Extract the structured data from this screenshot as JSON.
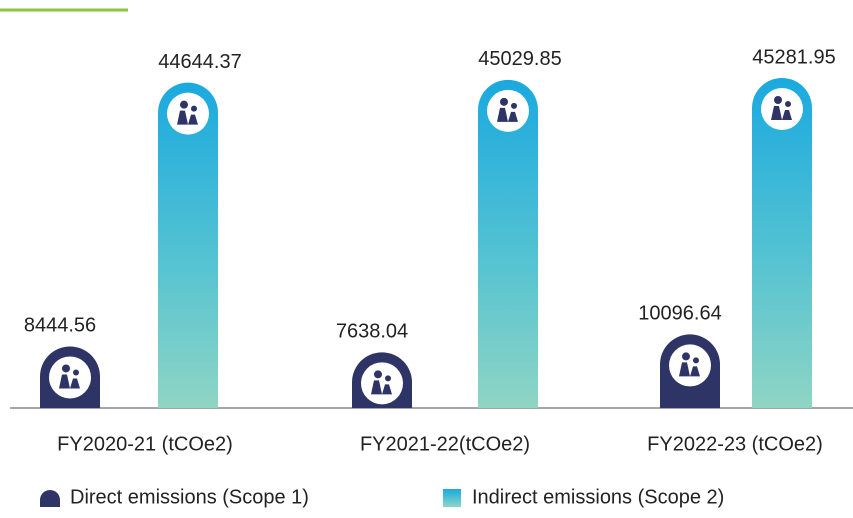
{
  "chart_data": {
    "type": "bar",
    "categories": [
      "FY2020-21 (tCOe2)",
      "FY2021-22(tCOe2)",
      "FY2022-23 (tCOe2)"
    ],
    "series": [
      {
        "name": "Direct emissions (Scope 1)",
        "color": "#2e3466",
        "values": [
          8444.56,
          7638.04,
          10096.64
        ]
      },
      {
        "name": "Indirect emissions (Scope 2)",
        "color": "#1aa9df",
        "values": [
          44644.37,
          45029.85,
          45281.95
        ]
      }
    ]
  }
}
